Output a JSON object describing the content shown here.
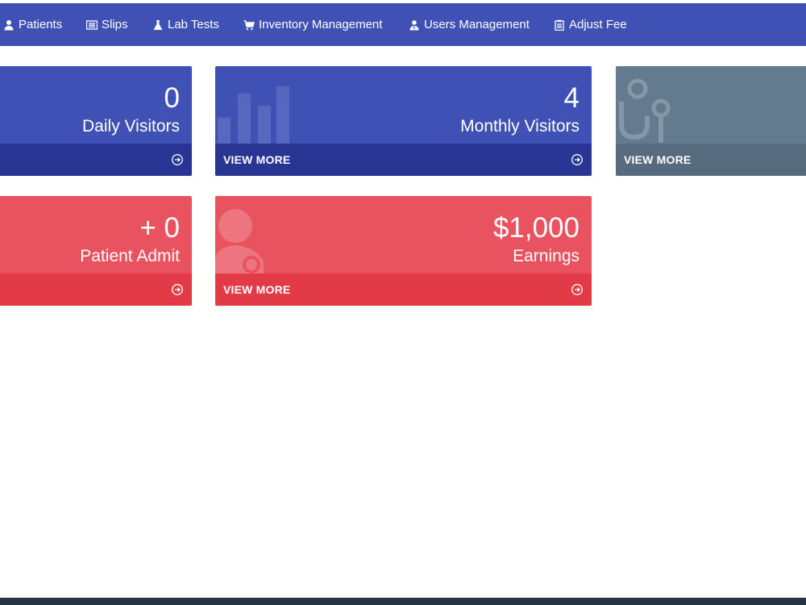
{
  "nav": {
    "items": [
      {
        "label": "Patients",
        "icon": "user-icon"
      },
      {
        "label": "Slips",
        "icon": "list-icon"
      },
      {
        "label": "Lab Tests",
        "icon": "flask-icon"
      },
      {
        "label": "Inventory Management",
        "icon": "cart-icon"
      },
      {
        "label": "Users Management",
        "icon": "users-icon"
      },
      {
        "label": "Adjust Fee",
        "icon": "clipboard-icon"
      }
    ]
  },
  "cards": {
    "daily_visitors": {
      "value": "0",
      "label": "Daily Visitors"
    },
    "monthly_visitors": {
      "value": "4",
      "label": "Monthly Visitors",
      "footer": "VIEW MORE"
    },
    "third": {
      "footer": "VIEW MORE"
    },
    "patient_admit": {
      "value": "+ 0",
      "label": "Patient Admit"
    },
    "earnings": {
      "value": "$1,000",
      "label": "Earnings",
      "footer": "VIEW MORE"
    }
  },
  "colors": {
    "primary": "#3f51b5",
    "primary_dark": "#283593",
    "danger": "#e8535f",
    "danger_dark": "#e23b47",
    "slate": "#647a8e",
    "footer": "#263544"
  }
}
